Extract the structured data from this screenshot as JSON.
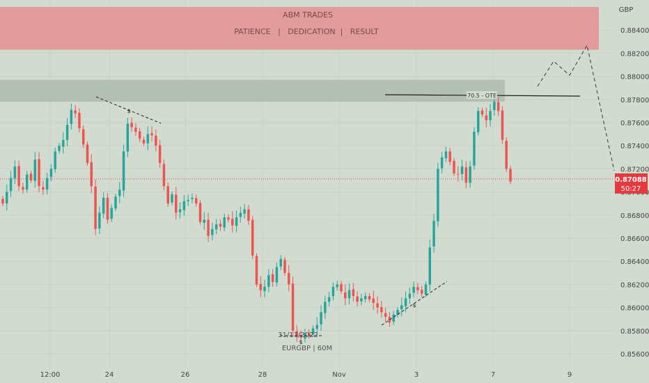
{
  "banner": {
    "title": "ABM TRADES",
    "subtitle": "PATIENCE   |   DEDICATION  |   RESULT"
  },
  "chart_data": {
    "type": "candlestick",
    "symbol_label": "EURGBP | 60M",
    "date_annotation": "31/11/2022",
    "currency": "GBP",
    "ylim": [
      0.8548,
      0.8866
    ],
    "y_ticks": [
      "0.88400",
      "0.88200",
      "0.88000",
      "0.87800",
      "0.87600",
      "0.87400",
      "0.87200",
      "0.87000",
      "0.86800",
      "0.86600",
      "0.86400",
      "0.86200",
      "0.86000",
      "0.85800",
      "0.85600"
    ],
    "x_ticks": [
      "12:00",
      "24",
      "26",
      "28",
      "Nov",
      "3",
      "7",
      "9"
    ],
    "current_price": "0.87088",
    "countdown": "50:27",
    "ote_label": "70.5 - OTE",
    "swing_mark": "$",
    "zones": [
      {
        "name": "premium-zone",
        "color": "#e29b9b",
        "from": 0.8823,
        "to": 0.886
      },
      {
        "name": "supply-zone",
        "color": "#b5c0b5",
        "from": 0.8778,
        "to": 0.8797
      }
    ],
    "ote_level": 0.878,
    "series_close": [
      0.869,
      0.87,
      0.8712,
      0.8722,
      0.8705,
      0.8702,
      0.8715,
      0.871,
      0.8728,
      0.8705,
      0.8702,
      0.8712,
      0.872,
      0.8735,
      0.874,
      0.8745,
      0.8758,
      0.8771,
      0.8768,
      0.8755,
      0.8741,
      0.8725,
      0.8705,
      0.8668,
      0.8682,
      0.8695,
      0.8676,
      0.8686,
      0.8696,
      0.8702,
      0.8735,
      0.8759,
      0.8756,
      0.8752,
      0.8746,
      0.8742,
      0.875,
      0.8749,
      0.874,
      0.8725,
      0.8705,
      0.869,
      0.8698,
      0.8682,
      0.8685,
      0.8692,
      0.8693,
      0.8695,
      0.869,
      0.8674,
      0.8676,
      0.8662,
      0.8668,
      0.8672,
      0.867,
      0.8678,
      0.8676,
      0.8671,
      0.8678,
      0.8682,
      0.8685,
      0.8675,
      0.8645,
      0.862,
      0.8615,
      0.8618,
      0.8628,
      0.8622,
      0.8635,
      0.8642,
      0.863,
      0.862,
      0.858,
      0.8575,
      0.8574,
      0.8578,
      0.8576,
      0.8582,
      0.8585,
      0.8596,
      0.8605,
      0.8609,
      0.8618,
      0.862,
      0.8614,
      0.8608,
      0.8615,
      0.861,
      0.8605,
      0.8608,
      0.861,
      0.8607,
      0.8604,
      0.86,
      0.8596,
      0.8592,
      0.8587,
      0.8594,
      0.8598,
      0.8602,
      0.8608,
      0.8612,
      0.8618,
      0.8615,
      0.8612,
      0.862,
      0.8652,
      0.8675,
      0.872,
      0.873,
      0.8735,
      0.8726,
      0.8716,
      0.8715,
      0.8722,
      0.8708,
      0.8722,
      0.8752,
      0.877,
      0.8767,
      0.8762,
      0.877,
      0.8778,
      0.877,
      0.8745,
      0.872,
      0.8709
    ]
  }
}
